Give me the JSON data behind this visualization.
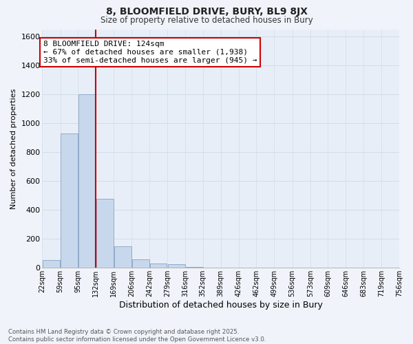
{
  "title": "8, BLOOMFIELD DRIVE, BURY, BL9 8JX",
  "subtitle": "Size of property relative to detached houses in Bury",
  "xlabel": "Distribution of detached houses by size in Bury",
  "ylabel": "Number of detached properties",
  "property_label": "8 BLOOMFIELD DRIVE: 124sqm",
  "annotation_line1": "← 67% of detached houses are smaller (1,938)",
  "annotation_line2": "33% of semi-detached houses are larger (945) →",
  "footer_line1": "Contains HM Land Registry data © Crown copyright and database right 2025.",
  "footer_line2": "Contains public sector information licensed under the Open Government Licence v3.0.",
  "bar_color": "#c8d8ec",
  "bar_edge_color": "#90aac8",
  "vline_color": "#cc0000",
  "annotation_box_edge_color": "#cc0000",
  "annotation_bg_color": "#ffffff",
  "grid_color": "#d0dce8",
  "bg_color": "#f0f4fa",
  "plot_bg_color": "#e8eef8",
  "bin_edges": [
    22,
    59,
    95,
    132,
    169,
    206,
    242,
    279,
    316,
    352,
    389,
    426,
    462,
    499,
    536,
    573,
    609,
    646,
    683,
    719,
    756
  ],
  "bin_labels": [
    "22sqm",
    "59sqm",
    "95sqm",
    "132sqm",
    "169sqm",
    "206sqm",
    "242sqm",
    "279sqm",
    "316sqm",
    "352sqm",
    "389sqm",
    "426sqm",
    "462sqm",
    "499sqm",
    "536sqm",
    "573sqm",
    "609sqm",
    "646sqm",
    "683sqm",
    "719sqm",
    "756sqm"
  ],
  "bar_heights": [
    55,
    930,
    1200,
    475,
    150,
    60,
    30,
    25,
    5,
    3,
    0,
    0,
    0,
    0,
    0,
    0,
    0,
    0,
    0,
    0
  ],
  "property_bin_index": 2,
  "ylim": [
    0,
    1650
  ],
  "yticks": [
    0,
    200,
    400,
    600,
    800,
    1000,
    1200,
    1400,
    1600
  ],
  "vline_x_bin_index": 2
}
